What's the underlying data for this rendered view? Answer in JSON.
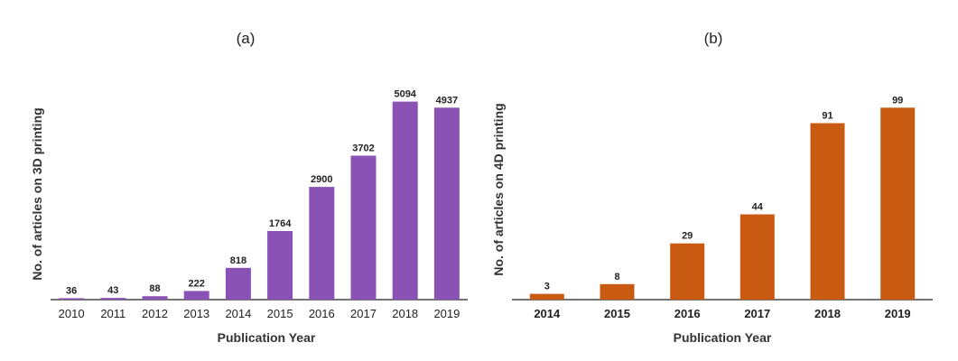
{
  "chart_data": [
    {
      "type": "bar",
      "panel_label": "(a)",
      "categories": [
        "2010",
        "2011",
        "2012",
        "2013",
        "2014",
        "2015",
        "2016",
        "2017",
        "2018",
        "2019"
      ],
      "values": [
        36,
        43,
        88,
        222,
        818,
        1764,
        2900,
        3702,
        5094,
        4937
      ],
      "data_labels": [
        "36",
        "43",
        "88",
        "222",
        "818",
        "1764",
        "2900",
        "3702",
        "5094",
        "4937"
      ],
      "xlabel": "Publication Year",
      "ylabel": "No. of articles on 3D printing",
      "ylim": [
        0,
        5200
      ],
      "color": "#8a52b5",
      "grid": false,
      "legend": "none"
    },
    {
      "type": "bar",
      "panel_label": "(b)",
      "categories": [
        "2014",
        "2015",
        "2016",
        "2017",
        "2018",
        "2019"
      ],
      "values": [
        3,
        8,
        29,
        44,
        91,
        99
      ],
      "data_labels": [
        "3",
        "8",
        "29",
        "44",
        "91",
        "99"
      ],
      "xlabel": "Publication Year",
      "ylabel": "No. of articles on 4D printing",
      "ylim": [
        0,
        101
      ],
      "color": "#c85a12",
      "grid": false,
      "legend": "none"
    }
  ]
}
